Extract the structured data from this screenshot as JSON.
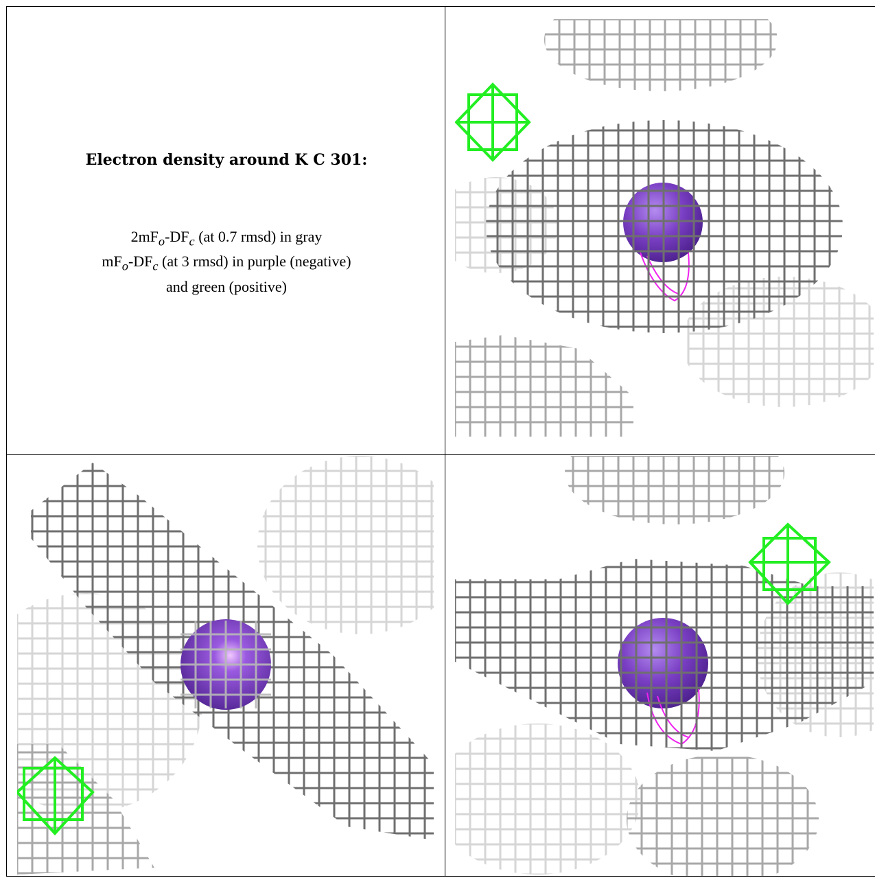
{
  "caption": {
    "title": "Electron density around K C 301:",
    "line1": {
      "a": "2mF",
      "sub1": "o",
      "b": "-DF",
      "sub2": "c",
      "c": " (at 0.7 rmsd) in gray"
    },
    "line2": {
      "a": "mF",
      "sub1": "o",
      "b": "-DF",
      "sub2": "c",
      "c": " (at 3 rmsd) in purple (negative)"
    },
    "line3": "and green (positive)"
  },
  "colors": {
    "mesh_dark": "#6f6f6f",
    "mesh_mid": "#a8a8a8",
    "mesh_light": "#d6d6d6",
    "positive": "#22ee22",
    "negative": "#ee22ee",
    "atom": "#7a3fc4"
  },
  "panels": [
    {
      "name": "view-top-right"
    },
    {
      "name": "view-bottom-left"
    },
    {
      "name": "view-bottom-right"
    }
  ]
}
